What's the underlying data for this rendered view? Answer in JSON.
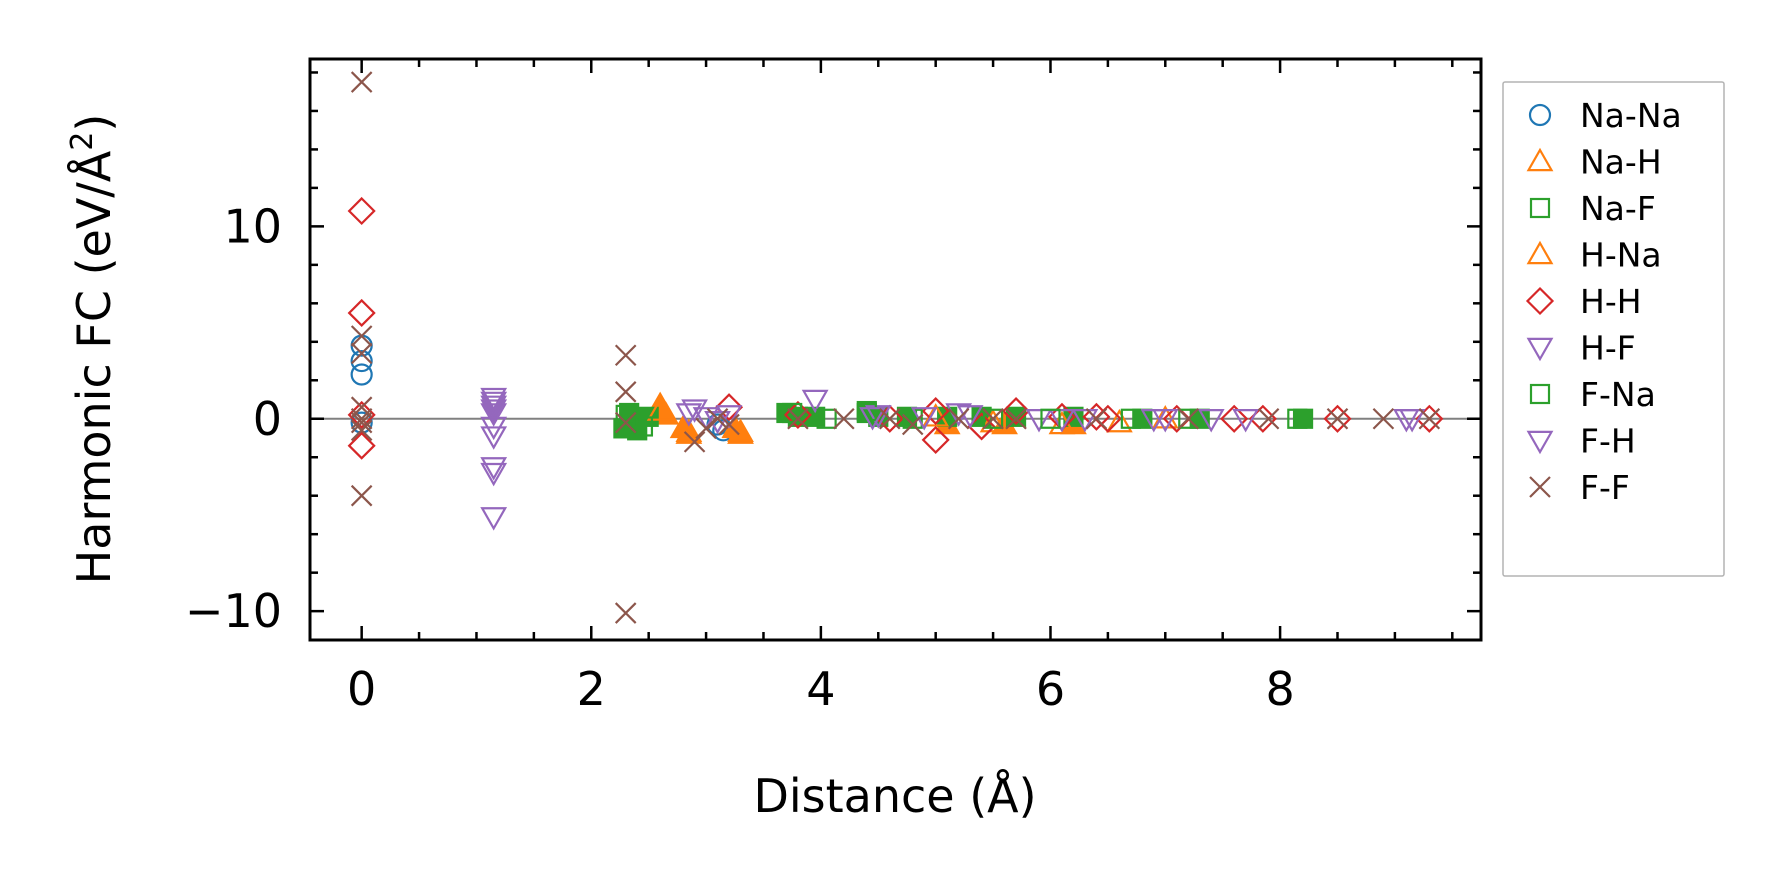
{
  "chart_data": {
    "type": "scatter",
    "xlabel": "Distance (Å)",
    "ylabel_main": "Harmonic FC (eV/Å",
    "ylabel_sup": "2",
    "ylabel_close": ")",
    "xlim": [
      -0.45,
      9.75
    ],
    "ylim": [
      -11.5,
      18.7
    ],
    "xticks": [
      0,
      2,
      4,
      6,
      8
    ],
    "xtick_labels": [
      "0",
      "2",
      "4",
      "6",
      "8"
    ],
    "xminor_step": 0.5,
    "yticks": [
      -10,
      0,
      10
    ],
    "ytick_labels": [
      "−10",
      "0",
      "10"
    ],
    "yminor_step": 2,
    "zero_line": true,
    "grid": false,
    "legend_position": "outside-right",
    "series": [
      {
        "name": "Na-Na",
        "marker": "circle",
        "color": "#1f77b4",
        "filled": false,
        "x": [
          0,
          0,
          0,
          0,
          3.1,
          3.15
        ],
        "y": [
          3.8,
          3.0,
          2.3,
          -0.2,
          -0.3,
          -0.6
        ]
      },
      {
        "name": "Na-H",
        "marker": "triangle-up",
        "color": "#ff7f0e",
        "filled": true,
        "x": [
          2.6,
          2.65,
          2.8,
          2.85,
          3.25,
          3.3,
          5.1,
          5.6,
          6.2
        ],
        "y": [
          0.7,
          0.2,
          -0.5,
          -0.8,
          -0.5,
          -0.7,
          -0.3,
          -0.3,
          -0.3
        ]
      },
      {
        "name": "Na-F",
        "marker": "square",
        "color": "#2ca02c",
        "filled": true,
        "x": [
          2.28,
          2.33,
          2.4,
          2.5,
          3.7,
          3.8,
          3.95,
          4.4,
          4.5,
          4.75,
          5.1,
          5.4,
          5.7,
          6.2,
          6.8,
          7.3,
          8.2
        ],
        "y": [
          -0.5,
          0.3,
          -0.6,
          0.1,
          0.3,
          0.1,
          0.1,
          0.3,
          0.1,
          0.1,
          0.1,
          0.1,
          0.1,
          0.1,
          0.0,
          0.0,
          0.0
        ]
      },
      {
        "name": "H-Na",
        "marker": "triangle-up",
        "color": "#ff7f0e",
        "filled": false,
        "x": [
          2.6,
          2.85,
          3.3,
          5.0,
          5.5,
          6.1,
          6.6,
          7.0
        ],
        "y": [
          0.4,
          -0.7,
          -0.8,
          0.1,
          -0.2,
          -0.3,
          -0.2,
          0.0
        ]
      },
      {
        "name": "H-H",
        "marker": "diamond",
        "color": "#d62728",
        "filled": false,
        "x": [
          0,
          0,
          0,
          0,
          3.2,
          3.8,
          4.6,
          5.0,
          5.0,
          5.4,
          5.7,
          6.1,
          6.4,
          6.5,
          7.1,
          7.6,
          7.85,
          8.5,
          9.3
        ],
        "y": [
          10.8,
          5.5,
          0.2,
          -1.4,
          0.6,
          0.2,
          0.0,
          0.4,
          -1.1,
          -0.4,
          0.4,
          0.1,
          0.1,
          0.0,
          0.0,
          0.0,
          0.0,
          0.0,
          0.0
        ]
      },
      {
        "name": "H-F",
        "marker": "triangle-down",
        "color": "#9467bd",
        "filled": false,
        "x": [
          1.15,
          1.15,
          1.15,
          1.15,
          1.15,
          1.15,
          1.15,
          2.85,
          3.0,
          3.2,
          3.95,
          4.5,
          5.2,
          5.9,
          6.1,
          6.9,
          7.4,
          7.7,
          9.1
        ],
        "y": [
          1.1,
          0.7,
          0.3,
          -0.9,
          -2.5,
          -2.8,
          -5.1,
          0.3,
          0.1,
          0.2,
          1.0,
          0.2,
          0.3,
          0.0,
          0.0,
          0.0,
          0.0,
          0.0,
          0.0
        ]
      },
      {
        "name": "F-Na",
        "marker": "square",
        "color": "#2ca02c",
        "filled": false,
        "x": [
          2.3,
          2.45,
          3.75,
          4.05,
          4.4,
          4.8,
          5.5,
          6.0,
          6.7,
          7.2,
          8.15
        ],
        "y": [
          0.2,
          -0.4,
          0.3,
          0.0,
          0.4,
          0.0,
          0.0,
          0.0,
          0.0,
          0.0,
          0.0
        ]
      },
      {
        "name": "F-H",
        "marker": "triangle-down",
        "color": "#9467bd",
        "filled": false,
        "x": [
          1.15,
          1.15,
          1.15,
          2.9,
          3.1,
          4.45,
          4.9,
          5.3,
          6.3,
          7.0,
          9.15
        ],
        "y": [
          0.9,
          0.5,
          -0.4,
          0.5,
          -0.1,
          0.1,
          0.1,
          0.2,
          0.0,
          0.0,
          0.0
        ]
      },
      {
        "name": "F-F",
        "marker": "x",
        "color": "#8c564b",
        "filled": false,
        "x": [
          0,
          0,
          0,
          0,
          0,
          0,
          0,
          0,
          2.3,
          2.3,
          2.3,
          2.3,
          2.9,
          3.0,
          3.1,
          3.2,
          3.8,
          4.2,
          4.6,
          4.8,
          5.2,
          5.5,
          5.7,
          6.4,
          7.2,
          7.9,
          8.5,
          8.9,
          9.3
        ],
        "y": [
          17.5,
          4.3,
          3.4,
          0.6,
          0.0,
          -0.6,
          -0.2,
          -4.0,
          3.3,
          1.4,
          -0.2,
          -10.1,
          -1.2,
          -0.5,
          0.0,
          -0.3,
          0.0,
          0.0,
          0.0,
          -0.3,
          0.0,
          0.0,
          0.0,
          0.0,
          0.0,
          0.0,
          0.0,
          0.0,
          0.0
        ]
      }
    ]
  }
}
